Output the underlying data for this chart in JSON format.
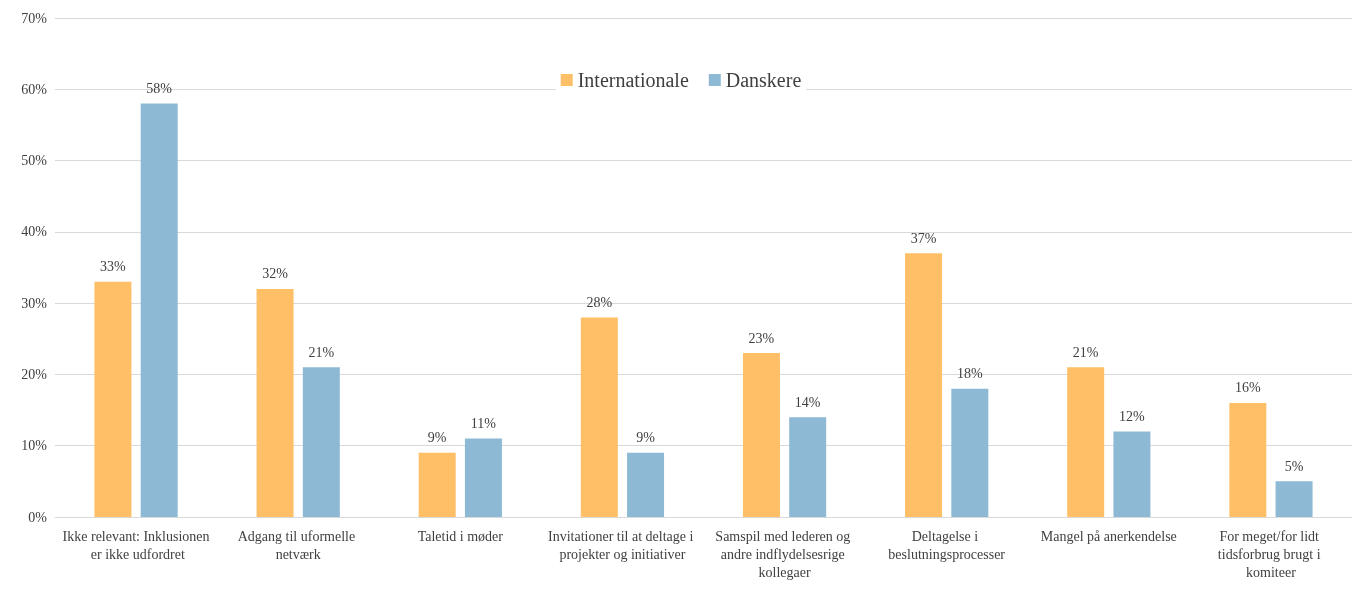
{
  "chart_data": {
    "type": "bar",
    "categories": [
      "Ikke relevant: Inklusionen er ikke udfordret",
      "Adgang til uformelle netværk",
      "Taletid i møder",
      "Invitationer til at deltage i projekter og initiativer",
      "Samspil med lederen og andre indflydelsesrige kollegaer",
      "Deltagelse i beslutningsprocesser",
      "Mangel på anerkendelse",
      "For meget/for lidt tidsforbrug brugt i komiteer"
    ],
    "series": [
      {
        "name": "Internationale",
        "color": "#ffbf66",
        "values": [
          33,
          32,
          9,
          28,
          23,
          37,
          21,
          16
        ],
        "value_labels": [
          "33%",
          "32%",
          "9%",
          "28%",
          "23%",
          "37%",
          "21%",
          "16%"
        ]
      },
      {
        "name": "Danskere",
        "color": "#8db9d4",
        "values": [
          58,
          21,
          11,
          9,
          14,
          18,
          12,
          5
        ],
        "value_labels": [
          "58%",
          "21%",
          "11%",
          "9%",
          "14%",
          "18%",
          "12%",
          "5%"
        ]
      }
    ],
    "ylim": [
      0,
      70
    ],
    "yticks": [
      {
        "value": 0,
        "label": "0%"
      },
      {
        "value": 10,
        "label": "10%"
      },
      {
        "value": 20,
        "label": "20%"
      },
      {
        "value": 30,
        "label": "30%"
      },
      {
        "value": 40,
        "label": "40%"
      },
      {
        "value": 50,
        "label": "50%"
      },
      {
        "value": 60,
        "label": "60%"
      },
      {
        "value": 70,
        "label": "70%"
      }
    ],
    "grid": "y",
    "legend": "top"
  }
}
